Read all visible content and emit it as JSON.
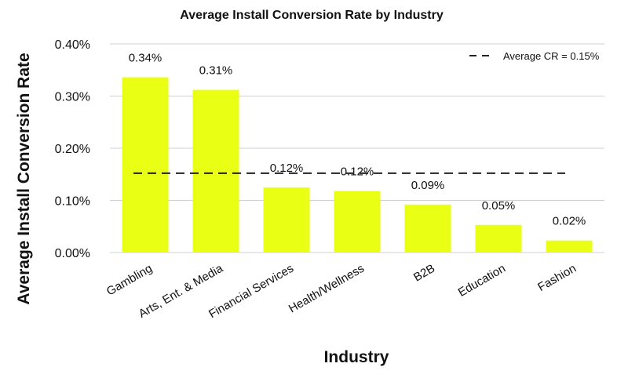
{
  "chart_data": {
    "type": "bar",
    "title": "Average Install Conversion Rate by Industry",
    "xlabel": "Industry",
    "ylabel": "Average Install Conversion Rate",
    "categories": [
      "Gambling",
      "Arts, Ent. & Media",
      "Financial Services",
      "Health/Wellness",
      "B2B",
      "Education",
      "Fashion"
    ],
    "values": [
      0.336,
      0.312,
      0.125,
      0.118,
      0.092,
      0.053,
      0.023
    ],
    "data_labels": [
      "0.34%",
      "0.31%",
      "0.12%",
      "0.12%",
      "0.09%",
      "0.05%",
      "0.02%"
    ],
    "ylim": [
      0,
      0.4
    ],
    "y_ticks": [
      0,
      0.1,
      0.2,
      0.3,
      0.4
    ],
    "y_tick_labels": [
      "0.00%",
      "0.10%",
      "0.20%",
      "0.30%",
      "0.40%"
    ],
    "reference_line": {
      "value": 0.152,
      "label": "Average CR = 0.15%",
      "style": "dashed"
    },
    "legend_position": "top-right",
    "grid": true,
    "bar_color": "#e9ff13",
    "line_color": "#222222"
  }
}
